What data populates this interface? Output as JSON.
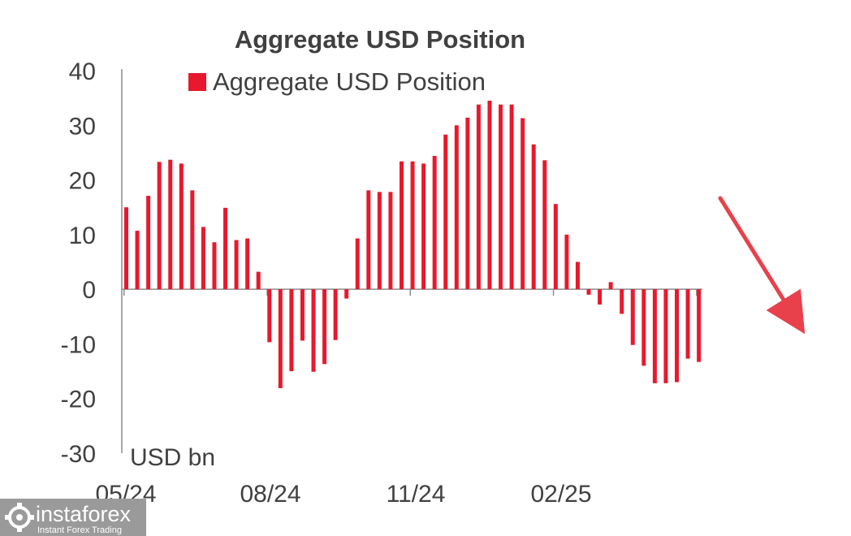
{
  "chart_data": {
    "type": "bar",
    "title": "Aggregate USD Position",
    "ylabel": "USD bn",
    "ylim": [
      -30,
      40
    ],
    "yticks": [
      40,
      30,
      20,
      10,
      0,
      -10,
      -20,
      -30
    ],
    "xtick_labels": [
      "05/24",
      "08/24",
      "11/24",
      "02/25"
    ],
    "legend_position": "top",
    "series": [
      {
        "name": "Aggregate USD Position",
        "color": "#e8192c",
        "values": [
          15.0,
          10.7,
          17.1,
          23.3,
          23.7,
          23.0,
          18.1,
          11.4,
          8.6,
          14.9,
          9.0,
          9.3,
          3.2,
          -9.7,
          -18.1,
          -15.0,
          -9.4,
          -15.1,
          -13.7,
          -9.3,
          -1.7,
          9.3,
          18.1,
          17.8,
          17.8,
          23.4,
          23.4,
          23.0,
          24.4,
          28.3,
          30.0,
          31.4,
          33.8,
          34.5,
          33.8,
          33.8,
          31.3,
          26.5,
          23.6,
          15.6,
          10.0,
          5.0,
          -1.0,
          -2.8,
          1.3,
          -4.5,
          -10.2,
          -14.0,
          -17.2,
          -17.2,
          -17.0,
          -12.7,
          -13.3
        ]
      }
    ],
    "trend_arrow": {
      "direction": "down",
      "color": "#e8414c"
    }
  },
  "watermark": {
    "brand": "instaforex",
    "tagline": "Instant Forex Trading",
    "icon": "gear-logo-icon",
    "background": "#9a9a9a"
  }
}
